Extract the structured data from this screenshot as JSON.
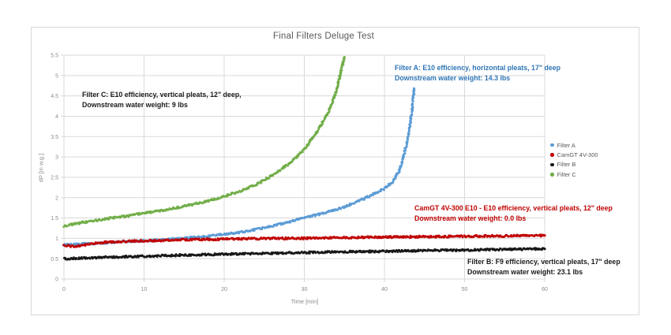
{
  "chart_data": {
    "type": "scatter",
    "title": "Final Filters Deluge Test",
    "xlabel": "Time [min]",
    "ylabel": "dP [in w.g.]",
    "xlim": [
      0,
      60
    ],
    "ylim": [
      0,
      5.5
    ],
    "x_ticks": [
      0,
      10,
      20,
      30,
      40,
      50,
      60
    ],
    "y_ticks": [
      0,
      0.5,
      1,
      1.5,
      2,
      2.5,
      3,
      3.5,
      4,
      4.5,
      5,
      5.5
    ],
    "grid": true,
    "grid_color": "#d9d9d9",
    "tick_color": "#8a8a8a",
    "legend_position": "right",
    "series": [
      {
        "name": "Filter A",
        "color": "#5B9BD5",
        "points": [
          [
            0,
            0.84
          ],
          [
            3,
            0.87
          ],
          [
            6,
            0.9
          ],
          [
            10,
            0.94
          ],
          [
            14,
            0.99
          ],
          [
            18,
            1.05
          ],
          [
            20,
            1.1
          ],
          [
            22,
            1.15
          ],
          [
            24,
            1.22
          ],
          [
            26,
            1.3
          ],
          [
            28,
            1.4
          ],
          [
            30,
            1.5
          ],
          [
            32,
            1.6
          ],
          [
            34,
            1.7
          ],
          [
            36,
            1.85
          ],
          [
            37,
            1.93
          ],
          [
            38,
            2.02
          ],
          [
            39,
            2.12
          ],
          [
            40,
            2.22
          ],
          [
            41,
            2.38
          ],
          [
            41.8,
            2.65
          ],
          [
            42.3,
            2.95
          ],
          [
            42.8,
            3.35
          ],
          [
            43.2,
            3.8
          ],
          [
            43.5,
            4.25
          ],
          [
            43.7,
            4.68
          ]
        ]
      },
      {
        "name": "CamGT 4V-300",
        "color": "#C00000",
        "points": [
          [
            0,
            0.82
          ],
          [
            1.5,
            0.8
          ],
          [
            3,
            0.86
          ],
          [
            5,
            0.9
          ],
          [
            8,
            0.93
          ],
          [
            12,
            0.95
          ],
          [
            16,
            0.97
          ],
          [
            20,
            0.98
          ],
          [
            25,
            1.0
          ],
          [
            30,
            1.0
          ],
          [
            35,
            1.02
          ],
          [
            40,
            1.03
          ],
          [
            45,
            1.04
          ],
          [
            50,
            1.05
          ],
          [
            55,
            1.06
          ],
          [
            60,
            1.07
          ]
        ]
      },
      {
        "name": "Filter B",
        "color": "#151515",
        "points": [
          [
            0,
            0.5
          ],
          [
            3,
            0.52
          ],
          [
            6,
            0.54
          ],
          [
            10,
            0.56
          ],
          [
            15,
            0.59
          ],
          [
            20,
            0.61
          ],
          [
            25,
            0.63
          ],
          [
            30,
            0.65
          ],
          [
            35,
            0.67
          ],
          [
            40,
            0.68
          ],
          [
            45,
            0.7
          ],
          [
            50,
            0.71
          ],
          [
            55,
            0.73
          ],
          [
            60,
            0.74
          ]
        ]
      },
      {
        "name": "Filter C",
        "color": "#70AD47",
        "points": [
          [
            0,
            1.3
          ],
          [
            2,
            1.38
          ],
          [
            4,
            1.44
          ],
          [
            6,
            1.5
          ],
          [
            8,
            1.55
          ],
          [
            10,
            1.62
          ],
          [
            12,
            1.68
          ],
          [
            14,
            1.75
          ],
          [
            16,
            1.83
          ],
          [
            18,
            1.92
          ],
          [
            20,
            2.03
          ],
          [
            22,
            2.16
          ],
          [
            24,
            2.32
          ],
          [
            26,
            2.55
          ],
          [
            28,
            2.82
          ],
          [
            29,
            3.0
          ],
          [
            30,
            3.2
          ],
          [
            31,
            3.45
          ],
          [
            32,
            3.75
          ],
          [
            33,
            4.1
          ],
          [
            33.8,
            4.5
          ],
          [
            34.4,
            4.95
          ],
          [
            35,
            5.45
          ]
        ]
      }
    ]
  },
  "annotations": [
    {
      "series": "Filter C",
      "color": "#1a1a1a",
      "lines": [
        "Filter C: E10 efficiency, vertical pleats, 12\" deep,",
        "Downstream water weight: 9 lbs"
      ]
    },
    {
      "series": "Filter A",
      "color": "#2E75B6",
      "lines": [
        "Filter A: E10 efficiency, horizontal pleats, 17\" deep",
        "Downstream water weight: 14.3 lbs"
      ]
    },
    {
      "series": "CamGT 4V-300",
      "color": "#C00000",
      "lines": [
        "CamGT 4V-300 E10 - E10 efficiency, vertical pleats, 12\" deep",
        "Downstream water weight: 0.0 lbs"
      ]
    },
    {
      "series": "Filter B",
      "color": "#1a1a1a",
      "lines": [
        "Filter B: F9 efficiency, vertical pleats, 17\" deep",
        "Downstream water weight: 23.1 lbs"
      ]
    }
  ],
  "legend": {
    "items": [
      {
        "label": "Filter A"
      },
      {
        "label": "CamGT 4V-300"
      },
      {
        "label": "Filter B"
      },
      {
        "label": "Filter C"
      }
    ]
  }
}
